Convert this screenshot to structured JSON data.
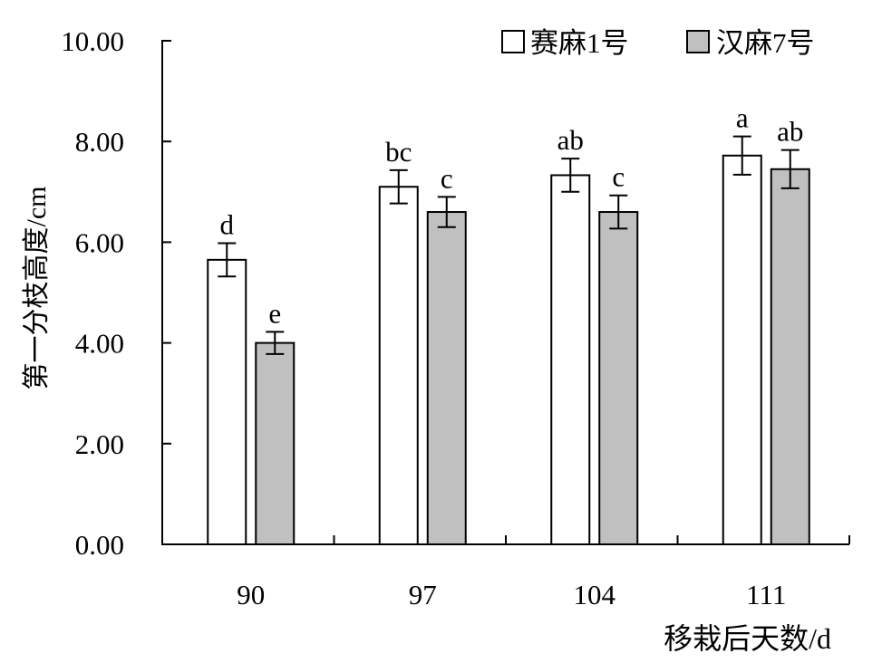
{
  "chart_data": {
    "type": "bar",
    "xlabel": "移栽后天数/d",
    "ylabel": "第一分枝高度/cm",
    "ylim": [
      0,
      10
    ],
    "yticks": [
      "0.00",
      "2.00",
      "4.00",
      "6.00",
      "8.00",
      "10.00"
    ],
    "categories": [
      "90",
      "97",
      "104",
      "111"
    ],
    "legend_position": "top-right",
    "grid": false,
    "series": [
      {
        "name": "赛麻1号",
        "color": "#ffffff",
        "values": [
          5.65,
          7.1,
          7.33,
          7.72
        ],
        "errors": [
          0.33,
          0.33,
          0.33,
          0.38
        ],
        "labels": [
          "d",
          "bc",
          "ab",
          "a"
        ]
      },
      {
        "name": "汉麻7号",
        "color": "#c0c0c0",
        "values": [
          4.0,
          6.6,
          6.6,
          7.45
        ],
        "errors": [
          0.22,
          0.3,
          0.33,
          0.38
        ],
        "labels": [
          "e",
          "c",
          "c",
          "ab"
        ]
      }
    ]
  }
}
